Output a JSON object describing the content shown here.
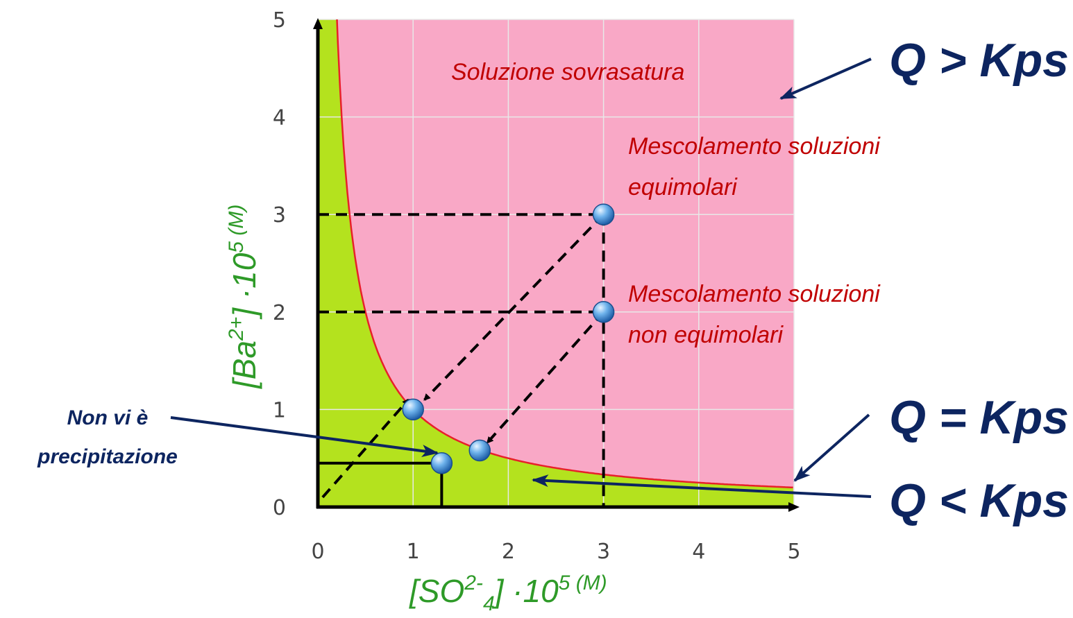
{
  "chart_data": {
    "type": "line",
    "xlabel": "[SO2-4] ·105 (M)",
    "ylabel": "[Ba2+] ·105 (M)",
    "xlabel_parts": {
      "base": "[SO",
      "sup1": "2-",
      "sub1": "4",
      "mid": "] ·10",
      "sup2": "5",
      "unit": " (M)"
    },
    "ylabel_parts": {
      "base": "[Ba",
      "sup1": "2+",
      "mid": "] ·10",
      "sup2": "5",
      "unit": " (M)"
    },
    "xlim": [
      0,
      5
    ],
    "ylim": [
      0,
      5
    ],
    "x_ticks": [
      "0",
      "1",
      "2",
      "3",
      "4",
      "5"
    ],
    "y_ticks": [
      "0",
      "1",
      "2",
      "3",
      "4",
      "5"
    ],
    "grid": true,
    "regions": [
      {
        "name": "supersaturated",
        "color": "#f9a8c6"
      },
      {
        "name": "unsaturated",
        "color": "#b4e21e"
      }
    ],
    "series": [
      {
        "kind": "solubility-curve",
        "color": "#e8202a",
        "product": 1.0
      }
    ],
    "points": [
      {
        "x": 3,
        "y": 3
      },
      {
        "x": 3,
        "y": 2
      },
      {
        "x": 1,
        "y": 1
      },
      {
        "x": 1.7,
        "y": 0.58
      },
      {
        "x": 1.3,
        "y": 0.45
      }
    ],
    "guides": [
      {
        "style": "dashed",
        "from": [
          0,
          3
        ],
        "to": [
          3,
          3
        ]
      },
      {
        "style": "dashed",
        "from": [
          0,
          2
        ],
        "to": [
          3,
          2
        ]
      },
      {
        "style": "dashed",
        "from": [
          3,
          3
        ],
        "to": [
          3,
          0
        ]
      },
      {
        "style": "solid",
        "from": [
          0,
          0.45
        ],
        "to": [
          1.3,
          0.45
        ]
      },
      {
        "style": "solid",
        "from": [
          1.3,
          0.45
        ],
        "to": [
          1.3,
          0
        ]
      }
    ],
    "arrows": [
      {
        "style": "dashed",
        "from": [
          3,
          3
        ],
        "to": [
          1.12,
          1.1
        ]
      },
      {
        "style": "dashed",
        "from": [
          3,
          2
        ],
        "to": [
          1.78,
          0.66
        ]
      },
      {
        "style": "dashed",
        "from": [
          0.05,
          0.1
        ],
        "to": [
          0.95,
          1.1
        ]
      }
    ],
    "annotations": {
      "supersaturated": "Soluzione sovrasatura",
      "equimolar_line1": "Mescolamento soluzioni",
      "equimolar_line2": "equimolari",
      "nonequimolar_line1": "Mescolamento soluzioni",
      "nonequimolar_line2": "non equimolari",
      "no_precip_line1": "Non vi è",
      "no_precip_line2": "precipitazione",
      "q_greater": "Q > Kps",
      "q_equal": "Q = Kps",
      "q_less": "Q < Kps"
    },
    "colors": {
      "annotation": "#c00000",
      "callout": "#0d2560",
      "axis_label": "#2e9a28",
      "point": "#5aa8e8"
    }
  }
}
